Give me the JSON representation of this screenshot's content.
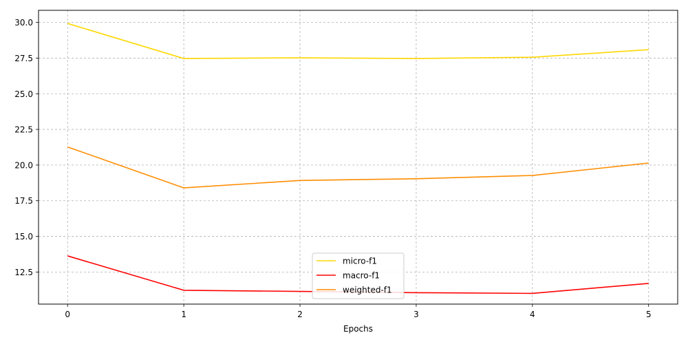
{
  "chart_data": {
    "type": "line",
    "title": "",
    "xlabel": "Epochs",
    "ylabel": "",
    "x": [
      0,
      1,
      2,
      3,
      4,
      5
    ],
    "xticks": [
      "0",
      "1",
      "2",
      "3",
      "4",
      "5"
    ],
    "xlim": [
      -0.25,
      5.25
    ],
    "ylim": [
      10.25,
      30.85
    ],
    "yticks": [
      "12.5",
      "15.0",
      "17.5",
      "20.0",
      "22.5",
      "25.0",
      "27.5",
      "30.0"
    ],
    "grid": true,
    "legend_position": "lower center",
    "series": [
      {
        "name": "micro-f1",
        "color": "#FFD700",
        "values": [
          29.93,
          27.47,
          27.52,
          27.47,
          27.56,
          28.09
        ]
      },
      {
        "name": "macro-f1",
        "color": "#FF0000",
        "values": [
          13.63,
          11.22,
          11.14,
          11.05,
          11.0,
          11.7
        ]
      },
      {
        "name": "weighted-f1",
        "color": "#FF8C00",
        "values": [
          21.27,
          18.4,
          18.92,
          19.04,
          19.27,
          20.14
        ]
      }
    ]
  }
}
